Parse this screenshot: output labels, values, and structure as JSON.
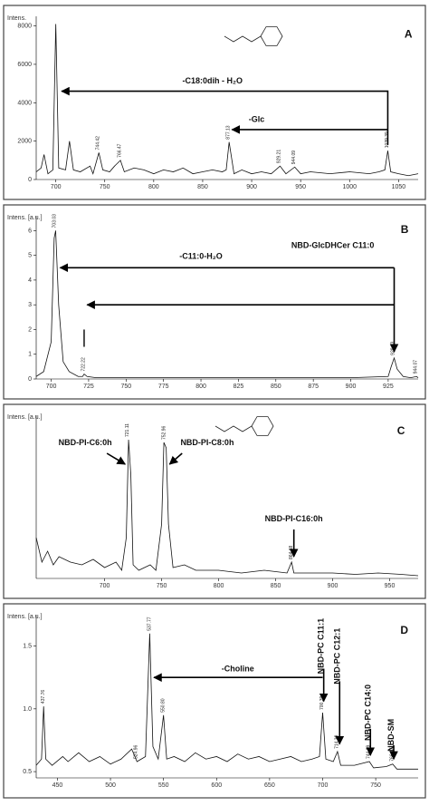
{
  "chart_data": [
    {
      "type": "line",
      "ylabel": "Intens.",
      "letter": "A",
      "x": [
        680,
        685,
        688,
        692,
        697,
        700,
        703,
        710,
        714,
        718,
        725,
        735,
        738,
        744,
        748,
        755,
        760,
        766,
        770,
        780,
        790,
        800,
        810,
        820,
        830,
        840,
        850,
        860,
        870,
        874,
        877,
        882,
        890,
        900,
        910,
        920,
        929,
        935,
        944,
        950,
        960,
        980,
        1000,
        1020,
        1030,
        1036,
        1039,
        1042,
        1050,
        1060,
        1070
      ],
      "values": [
        400,
        600,
        1300,
        300,
        500,
        8100,
        600,
        500,
        2000,
        500,
        400,
        700,
        300,
        1400,
        500,
        400,
        700,
        1000,
        400,
        600,
        500,
        300,
        500,
        400,
        600,
        300,
        400,
        500,
        400,
        500,
        1950,
        300,
        500,
        300,
        400,
        300,
        700,
        300,
        650,
        300,
        400,
        300,
        400,
        300,
        400,
        500,
        1500,
        400,
        300,
        200,
        300
      ],
      "xlim": [
        680,
        1070
      ],
      "ylim": [
        0,
        8500
      ],
      "xticks": [
        700,
        750,
        800,
        850,
        900,
        950,
        1000,
        1050
      ],
      "yticks": [
        0,
        2000,
        4000,
        6000,
        8000
      ],
      "peak_labels": [
        {
          "value": 744.42,
          "label": "744.42"
        },
        {
          "value": 766.47,
          "label": "766.47"
        },
        {
          "value": 877.13,
          "label": "877.13"
        },
        {
          "value": 929.21,
          "label": "929.21"
        },
        {
          "value": 944.09,
          "label": "944.09"
        },
        {
          "value": 1039.39,
          "label": "1039.39"
        }
      ],
      "annotations": [
        "-C18:0dih - H₂O",
        "-Glc"
      ]
    },
    {
      "type": "line",
      "ylabel": "Intens. [a.u.]",
      "letter": "B",
      "x": [
        690,
        695,
        700,
        702,
        703,
        705,
        708,
        712,
        718,
        721,
        722,
        724,
        730,
        760,
        800,
        850,
        900,
        925,
        927,
        929,
        931,
        935,
        940,
        944,
        945
      ],
      "values": [
        0.1,
        0.3,
        1.5,
        5.7,
        6.0,
        3.0,
        0.7,
        0.3,
        0.1,
        0.1,
        0.2,
        0.1,
        0.05,
        0.05,
        0.05,
        0.05,
        0.05,
        0.1,
        0.5,
        0.85,
        0.4,
        0.1,
        0.05,
        0.1,
        0.05
      ],
      "xlim": [
        690,
        945
      ],
      "ylim": [
        0,
        6.6
      ],
      "xticks": [
        700,
        725,
        750,
        775,
        800,
        825,
        850,
        875,
        900,
        925
      ],
      "yticks": [
        0,
        1,
        2,
        3,
        4,
        5,
        6
      ],
      "peak_labels": [
        {
          "value": 703.03,
          "label": "703.03"
        },
        {
          "value": 722.22,
          "label": "722.22"
        },
        {
          "value": 929.03,
          "label": "929.03"
        },
        {
          "value": 944.07,
          "label": "944.07"
        }
      ],
      "annotations": [
        "-C11:0-H₂O",
        "NBD-GlcDHCer C11:0"
      ]
    },
    {
      "type": "line",
      "ylabel": "Intens. [a.u.]",
      "letter": "C",
      "x": [
        640,
        645,
        650,
        655,
        660,
        670,
        680,
        690,
        700,
        710,
        715,
        719,
        721,
        723,
        725,
        730,
        740,
        745,
        750,
        752,
        754,
        756,
        760,
        770,
        780,
        800,
        820,
        840,
        860,
        864,
        866,
        880,
        900,
        920,
        940,
        960,
        975
      ],
      "values": [
        1500,
        600,
        1000,
        500,
        800,
        600,
        500,
        700,
        400,
        600,
        300,
        1500,
        5100,
        3800,
        500,
        300,
        500,
        300,
        2000,
        5000,
        4800,
        2000,
        400,
        500,
        300,
        300,
        200,
        300,
        200,
        600,
        200,
        200,
        200,
        150,
        200,
        150,
        100
      ],
      "xlim": [
        640,
        975
      ],
      "ylim": [
        0,
        6000
      ],
      "xticks": [
        700,
        750,
        800,
        850,
        900,
        950
      ],
      "peak_labels": [
        {
          "value": 721.11,
          "label": "721.11"
        },
        {
          "value": 752.96,
          "label": "752.96"
        },
        {
          "value": 864.68,
          "label": "864.68"
        }
      ],
      "annotations": [
        "NBD-PI-C6:0h",
        "NBD-PI-C8:0h",
        "NBD-PI-C16:0h"
      ]
    },
    {
      "type": "line",
      "ylabel": "Intens. [a.u.]",
      "letter": "D",
      "x": [
        430,
        435,
        437,
        439,
        445,
        455,
        460,
        470,
        480,
        490,
        500,
        510,
        520,
        525,
        533,
        537,
        540,
        545,
        550,
        553,
        560,
        570,
        580,
        590,
        600,
        610,
        620,
        630,
        640,
        650,
        660,
        670,
        680,
        690,
        697,
        700,
        703,
        710,
        714,
        717,
        730,
        744,
        748,
        760,
        766,
        770,
        790
      ],
      "values": [
        0.55,
        0.6,
        1.02,
        0.6,
        0.55,
        0.62,
        0.58,
        0.65,
        0.58,
        0.62,
        0.56,
        0.6,
        0.68,
        0.58,
        0.62,
        1.6,
        0.7,
        0.6,
        0.95,
        0.6,
        0.62,
        0.58,
        0.65,
        0.6,
        0.62,
        0.58,
        0.64,
        0.6,
        0.62,
        0.58,
        0.6,
        0.62,
        0.58,
        0.6,
        0.62,
        0.97,
        0.6,
        0.58,
        0.66,
        0.55,
        0.55,
        0.58,
        0.53,
        0.54,
        0.56,
        0.52,
        0.52
      ],
      "xlim": [
        430,
        790
      ],
      "ylim": [
        0.45,
        1.75
      ],
      "xticks": [
        450,
        500,
        550,
        600,
        650,
        700,
        750
      ],
      "yticks": [
        {
          "value": 0.5,
          "label": "0.5"
        },
        {
          "value": 1,
          "label": "1.0"
        },
        {
          "value": 1.5,
          "label": "1.5"
        }
      ],
      "peak_labels": [
        {
          "value": 437.76,
          "label": "437.76"
        },
        {
          "value": 524.96,
          "label": "524.96"
        },
        {
          "value": 537.77,
          "label": "537.77"
        },
        {
          "value": 550.8,
          "label": "550.80"
        },
        {
          "value": 700.39,
          "label": "700.39"
        },
        {
          "value": 714.39,
          "label": "714.39"
        },
        {
          "value": 744.39,
          "label": "744.39"
        },
        {
          "value": 766.47,
          "label": "766.47"
        }
      ],
      "annotations": [
        "-Choline",
        "NBD-PC C11:1",
        "NBD-PC C12:1",
        "NBD-PC C14:0",
        "NBD-SM"
      ]
    }
  ]
}
